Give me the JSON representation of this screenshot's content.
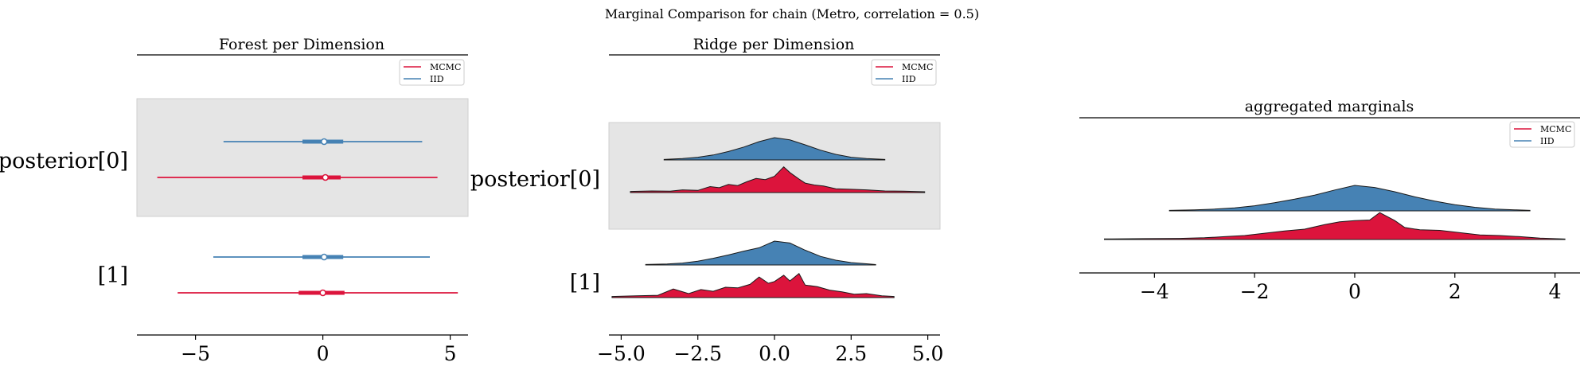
{
  "figure": {
    "suptitle": "Marginal Comparison for chain (Metro, correlation = 0.5)"
  },
  "colors": {
    "mcmc": "#dc143c",
    "iid": "#4682b4",
    "band": "#e5e5e5"
  },
  "chart_data": [
    {
      "type": "forest",
      "title": "Forest per Dimension",
      "xlim": [
        -7.3,
        5.7
      ],
      "xticks": [
        -5,
        0,
        5
      ],
      "xtick_labels": [
        "−5",
        "0",
        "5"
      ],
      "rows": [
        "posterior[0]",
        "[1]"
      ],
      "legend": {
        "placement": "top-right",
        "entries": [
          "MCMC",
          "IID"
        ]
      },
      "series": [
        {
          "name": "IID",
          "intervals": [
            {
              "row": 0,
              "low": -3.9,
              "high": 3.9,
              "q_low": -0.8,
              "q_high": 0.8,
              "center": 0.05
            },
            {
              "row": 1,
              "low": -4.3,
              "high": 4.2,
              "q_low": -0.8,
              "q_high": 0.8,
              "center": 0.05
            }
          ]
        },
        {
          "name": "MCMC",
          "intervals": [
            {
              "row": 0,
              "low": -6.5,
              "high": 4.5,
              "q_low": -0.8,
              "q_high": 0.7,
              "center": 0.1
            },
            {
              "row": 1,
              "low": -5.7,
              "high": 5.3,
              "q_low": -0.95,
              "q_high": 0.85,
              "center": 0.0
            }
          ]
        }
      ]
    },
    {
      "type": "area",
      "title": "Ridge per Dimension",
      "xlim": [
        -5.4,
        5.4
      ],
      "xticks": [
        -5.0,
        -2.5,
        0.0,
        2.5,
        5.0
      ],
      "xtick_labels": [
        "−5.0",
        "−2.5",
        "0.0",
        "2.5",
        "5.0"
      ],
      "rows": [
        "posterior[0]",
        "[1]"
      ],
      "legend": {
        "placement": "top-right",
        "entries": [
          "MCMC",
          "IID"
        ]
      },
      "series": [
        {
          "name": "IID",
          "ridges": [
            {
              "row": 0,
              "x": [
                -3.6,
                -3.0,
                -2.5,
                -2.0,
                -1.5,
                -1.0,
                -0.5,
                0.0,
                0.5,
                1.0,
                1.5,
                2.0,
                2.5,
                3.0,
                3.6
              ],
              "y": [
                0.02,
                0.06,
                0.12,
                0.22,
                0.38,
                0.58,
                0.82,
                1.0,
                0.9,
                0.68,
                0.44,
                0.25,
                0.12,
                0.06,
                0.02
              ]
            },
            {
              "row": 1,
              "x": [
                -4.2,
                -3.5,
                -3.0,
                -2.5,
                -2.0,
                -1.5,
                -1.0,
                -0.5,
                0.0,
                0.5,
                1.0,
                1.5,
                2.0,
                2.5,
                3.0,
                3.3
              ],
              "y": [
                0.02,
                0.04,
                0.08,
                0.16,
                0.28,
                0.42,
                0.58,
                0.72,
                1.0,
                0.92,
                0.62,
                0.36,
                0.2,
                0.1,
                0.05,
                0.02
              ]
            }
          ]
        },
        {
          "name": "MCMC",
          "ridges": [
            {
              "row": 0,
              "x": [
                -4.7,
                -4.0,
                -3.4,
                -3.0,
                -2.5,
                -2.1,
                -1.8,
                -1.5,
                -1.2,
                -0.9,
                -0.6,
                -0.3,
                0.0,
                0.3,
                0.5,
                0.8,
                1.0,
                1.3,
                1.6,
                2.0,
                2.5,
                3.0,
                3.6,
                4.2,
                4.9
              ],
              "y": [
                0.04,
                0.06,
                0.05,
                0.1,
                0.08,
                0.22,
                0.18,
                0.3,
                0.26,
                0.4,
                0.52,
                0.48,
                0.6,
                0.95,
                0.74,
                0.5,
                0.35,
                0.28,
                0.24,
                0.14,
                0.12,
                0.1,
                0.06,
                0.05,
                0.03
              ]
            },
            {
              "row": 1,
              "x": [
                -5.3,
                -4.5,
                -3.8,
                -3.3,
                -2.8,
                -2.4,
                -2.0,
                -1.6,
                -1.2,
                -0.8,
                -0.5,
                -0.2,
                0.0,
                0.3,
                0.5,
                0.8,
                1.0,
                1.4,
                1.8,
                2.2,
                2.6,
                3.0,
                3.5,
                3.9
              ],
              "y": [
                0.04,
                0.06,
                0.08,
                0.3,
                0.14,
                0.28,
                0.22,
                0.36,
                0.34,
                0.46,
                0.72,
                0.5,
                0.56,
                0.78,
                0.58,
                0.84,
                0.44,
                0.38,
                0.26,
                0.2,
                0.12,
                0.14,
                0.06,
                0.04
              ]
            }
          ]
        }
      ]
    },
    {
      "type": "area",
      "title": "aggregated marginals",
      "xlim": [
        -5.5,
        4.5
      ],
      "xticks": [
        -4,
        -2,
        0,
        2,
        4
      ],
      "xtick_labels": [
        "−4",
        "−2",
        "0",
        "2",
        "4"
      ],
      "legend": {
        "placement": "top-right",
        "entries": [
          "MCMC",
          "IID"
        ]
      },
      "series": [
        {
          "name": "IID",
          "x": [
            -3.7,
            -3.2,
            -2.8,
            -2.4,
            -2.0,
            -1.6,
            -1.2,
            -0.8,
            -0.4,
            0.0,
            0.4,
            0.8,
            1.2,
            1.6,
            2.0,
            2.4,
            2.8,
            3.2,
            3.5
          ],
          "y": [
            0.02,
            0.04,
            0.07,
            0.12,
            0.2,
            0.32,
            0.46,
            0.62,
            0.82,
            1.0,
            0.92,
            0.75,
            0.55,
            0.38,
            0.24,
            0.14,
            0.07,
            0.04,
            0.02
          ]
        },
        {
          "name": "MCMC",
          "x": [
            -5.0,
            -4.2,
            -3.5,
            -3.0,
            -2.6,
            -2.2,
            -1.8,
            -1.4,
            -1.0,
            -0.6,
            -0.3,
            0.0,
            0.3,
            0.5,
            0.8,
            1.0,
            1.3,
            1.7,
            2.1,
            2.5,
            2.9,
            3.3,
            3.7,
            4.2
          ],
          "y": [
            0.02,
            0.03,
            0.04,
            0.06,
            0.1,
            0.14,
            0.22,
            0.3,
            0.36,
            0.52,
            0.62,
            0.66,
            0.68,
            0.94,
            0.66,
            0.42,
            0.34,
            0.32,
            0.24,
            0.16,
            0.14,
            0.1,
            0.05,
            0.02
          ]
        }
      ]
    }
  ]
}
